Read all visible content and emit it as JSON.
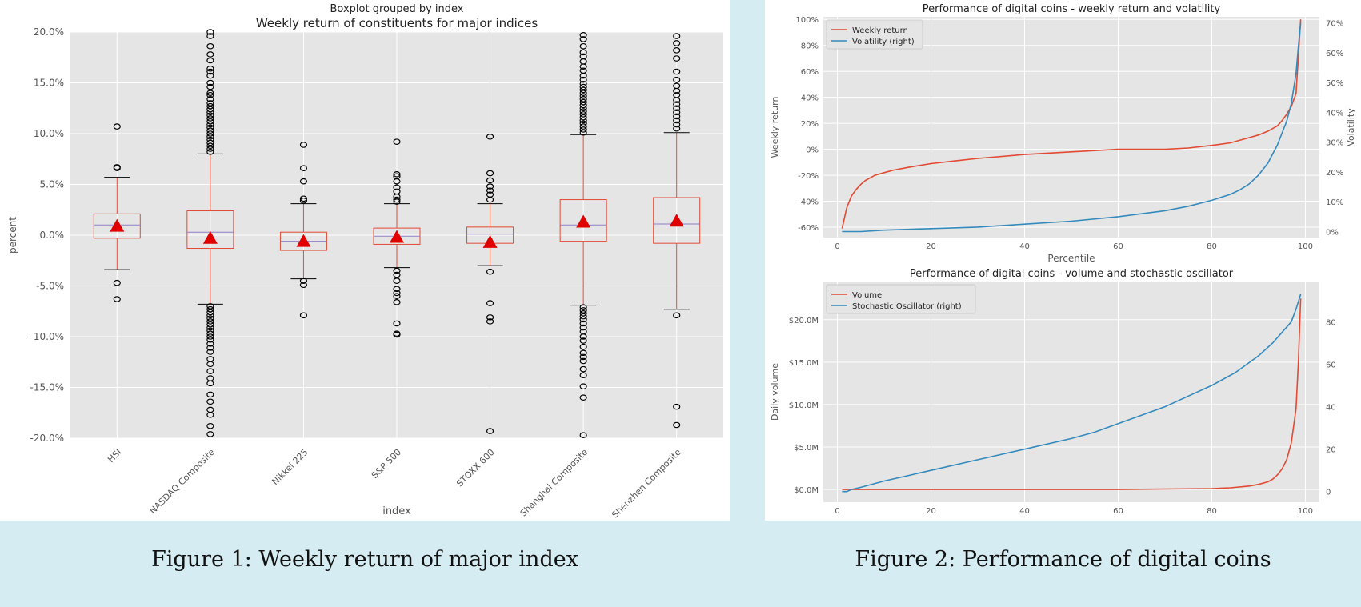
{
  "captions": {
    "fig1": "Figure 1: Weekly return of major index",
    "fig2": "Figure 2: Performance of digital coins"
  },
  "colors": {
    "plot_bg": "#e5e5e5",
    "grid": "#ffffff",
    "box": "#e24a33",
    "median": "#8f7ec6",
    "mean": "#e00000",
    "line_red": "#e24a33",
    "line_blue": "#348abd"
  },
  "chart_data": [
    {
      "type": "box",
      "suptitle": "Boxplot grouped by index",
      "title": "Weekly return of constituents for major indices",
      "xlabel": "index",
      "ylabel": "percent",
      "ylim": [
        -20,
        20
      ],
      "yticks": [
        -20,
        -15,
        -10,
        -5,
        0,
        5,
        10,
        15,
        20
      ],
      "ytick_labels": [
        "-20.0%",
        "-15.0%",
        "-10.0%",
        "-5.0%",
        "0.0%",
        "5.0%",
        "10.0%",
        "15.0%",
        "20.0%"
      ],
      "grid": true,
      "categories": [
        "HSI",
        "NASDAQ Composite",
        "Nikkei 225",
        "S&P 500",
        "STOXX 600",
        "Shanghai Composite",
        "Shenzhen Composite"
      ],
      "boxes": [
        {
          "whisker_low": -3.4,
          "q1": -0.3,
          "median": 1.0,
          "q3": 2.1,
          "whisker_high": 5.7,
          "mean": 0.9,
          "outliers": [
            10.7,
            6.7,
            6.6,
            -4.7,
            -6.3
          ]
        },
        {
          "whisker_low": -6.8,
          "q1": -1.3,
          "median": 0.3,
          "q3": 2.4,
          "whisker_high": 8.0,
          "mean": -0.3,
          "outliers": [
            8.2,
            8.5,
            8.8,
            9.1,
            9.4,
            9.7,
            10.0,
            10.3,
            10.6,
            10.9,
            11.2,
            11.5,
            11.8,
            12.1,
            12.4,
            12.7,
            13.0,
            13.4,
            13.8,
            14.0,
            14.6,
            15.0,
            15.7,
            16.1,
            16.4,
            17.2,
            17.8,
            18.6,
            19.6,
            20.0,
            -7.0,
            -7.3,
            -7.6,
            -7.9,
            -8.2,
            -8.5,
            -8.8,
            -9.1,
            -9.4,
            -9.7,
            -10.0,
            -10.3,
            -10.7,
            -11.1,
            -11.5,
            -12.2,
            -12.7,
            -13.4,
            -14.1,
            -14.6,
            -15.7,
            -16.4,
            -17.2,
            -17.7,
            -18.8,
            -19.6
          ]
        },
        {
          "whisker_low": -4.3,
          "q1": -1.5,
          "median": -0.6,
          "q3": 0.3,
          "whisker_high": 3.1,
          "mean": -0.6,
          "outliers": [
            8.9,
            6.6,
            5.3,
            3.6,
            3.4,
            -4.5,
            -4.9,
            -7.9
          ]
        },
        {
          "whisker_low": -3.2,
          "q1": -0.9,
          "median": -0.1,
          "q3": 0.7,
          "whisker_high": 3.1,
          "mean": -0.2,
          "outliers": [
            9.2,
            6.0,
            5.8,
            5.3,
            4.7,
            4.3,
            3.8,
            3.5,
            3.3,
            -3.5,
            -3.9,
            -4.5,
            -5.3,
            -5.7,
            -6.0,
            -6.6,
            -8.7,
            -9.7,
            -9.8
          ]
        },
        {
          "whisker_low": -3.0,
          "q1": -0.8,
          "median": 0.1,
          "q3": 0.8,
          "whisker_high": 3.1,
          "mean": -0.7,
          "outliers": [
            9.7,
            6.1,
            5.4,
            4.8,
            4.4,
            4.0,
            3.5,
            -3.6,
            -6.7,
            -8.1,
            -8.5,
            -19.3
          ]
        },
        {
          "whisker_low": -6.9,
          "q1": -0.6,
          "median": 1.0,
          "q3": 3.5,
          "whisker_high": 9.9,
          "mean": 1.3,
          "outliers": [
            10.1,
            10.4,
            10.7,
            11.0,
            11.3,
            11.6,
            11.9,
            12.2,
            12.5,
            12.8,
            13.1,
            13.4,
            13.7,
            14.0,
            14.3,
            14.6,
            14.9,
            15.3,
            15.7,
            16.2,
            16.6,
            17.1,
            17.6,
            18.0,
            18.6,
            19.3,
            19.7,
            -7.1,
            -7.4,
            -7.7,
            -8.0,
            -8.3,
            -8.7,
            -9.1,
            -9.5,
            -10.0,
            -10.4,
            -11.0,
            -11.6,
            -12.0,
            -12.4,
            -13.2,
            -13.8,
            -14.9,
            -16.0,
            -19.7
          ]
        },
        {
          "whisker_low": -7.3,
          "q1": -0.8,
          "median": 1.1,
          "q3": 3.7,
          "whisker_high": 10.1,
          "mean": 1.4,
          "outliers": [
            10.5,
            10.9,
            11.3,
            11.7,
            12.1,
            12.5,
            12.9,
            13.3,
            13.8,
            14.2,
            14.7,
            15.3,
            16.1,
            17.4,
            18.2,
            18.9,
            19.6,
            -7.9,
            -16.9,
            -18.7
          ]
        }
      ]
    },
    {
      "type": "line",
      "title": "Performance of digital coins - weekly return and volatility",
      "xlabel": "Percentile",
      "ylabel": "Weekly return",
      "y2label": "Volatility",
      "xlim": [
        -3,
        103
      ],
      "xticks": [
        0,
        20,
        40,
        60,
        80,
        100
      ],
      "ylim": [
        -68,
        102
      ],
      "yticks": [
        -60,
        -40,
        -20,
        0,
        20,
        40,
        60,
        80,
        100
      ],
      "ytick_labels": [
        "-60%",
        "-40%",
        "-20%",
        "0%",
        "20%",
        "40%",
        "60%",
        "80%",
        "100%"
      ],
      "y2lim": [
        -2,
        72
      ],
      "y2ticks": [
        0,
        10,
        20,
        30,
        40,
        50,
        60,
        70
      ],
      "y2tick_labels": [
        "0%",
        "10%",
        "20%",
        "30%",
        "40%",
        "50%",
        "60%",
        "70%"
      ],
      "legend": "top-left",
      "series": [
        {
          "name": "Weekly return",
          "axis": "left",
          "x": [
            1,
            2,
            3,
            4,
            5,
            6,
            7,
            8,
            10,
            12,
            15,
            20,
            25,
            30,
            40,
            50,
            60,
            64,
            70,
            75,
            80,
            84,
            88,
            90,
            92,
            94,
            95,
            96,
            97,
            98,
            99
          ],
          "y": [
            -61,
            -45,
            -36,
            -31,
            -27,
            -24,
            -22,
            -20,
            -18,
            -16,
            -14,
            -11,
            -9,
            -7,
            -4,
            -2,
            0,
            0,
            0,
            1,
            3,
            5,
            9,
            11,
            14,
            18,
            22,
            27,
            33,
            43,
            100
          ]
        },
        {
          "name": "Volatility (right)",
          "axis": "right",
          "x": [
            1,
            3,
            5,
            10,
            20,
            30,
            40,
            50,
            60,
            70,
            75,
            80,
            84,
            86,
            88,
            90,
            92,
            93,
            94,
            95,
            96,
            97,
            98,
            98.5,
            99
          ],
          "y": [
            0,
            0,
            0,
            0.5,
            1,
            1.5,
            2.5,
            3.5,
            5,
            7,
            8.5,
            10.5,
            12.5,
            14,
            16,
            19,
            23,
            26,
            29,
            33,
            37,
            43,
            53,
            62,
            70
          ]
        }
      ]
    },
    {
      "type": "line",
      "title": "Performance of digital coins - volume and stochastic oscillator",
      "xlabel": "",
      "ylabel": "Daily volume",
      "xlim": [
        -3,
        103
      ],
      "xticks": [
        0,
        20,
        40,
        60,
        80,
        100
      ],
      "ylim": [
        -1.5,
        24.5
      ],
      "yticks": [
        0,
        5,
        10,
        15,
        20
      ],
      "ytick_labels": [
        "$0.0M",
        "$5.0M",
        "$10.0M",
        "$15.0M",
        "$20.0M"
      ],
      "y2lim": [
        -5,
        99
      ],
      "y2ticks": [
        0,
        20,
        40,
        60,
        80
      ],
      "y2tick_labels": [
        "0",
        "20",
        "40",
        "60",
        "80"
      ],
      "legend": "top-left",
      "series": [
        {
          "name": "Volume",
          "axis": "left",
          "x": [
            1,
            10,
            20,
            40,
            60,
            70,
            80,
            84,
            88,
            90,
            92,
            93,
            94,
            95,
            96,
            97,
            98,
            98.5,
            99
          ],
          "y": [
            0,
            0,
            0,
            0,
            0,
            0.05,
            0.1,
            0.2,
            0.4,
            0.6,
            0.9,
            1.2,
            1.7,
            2.4,
            3.5,
            5.5,
            9.5,
            15,
            22.5
          ]
        },
        {
          "name": "Stochastic Oscillator (right)",
          "axis": "right",
          "x": [
            1,
            2,
            3,
            5,
            10,
            20,
            30,
            40,
            50,
            55,
            60,
            65,
            70,
            75,
            80,
            85,
            90,
            93,
            95,
            97,
            98,
            99
          ],
          "y": [
            0,
            0,
            1,
            2,
            5,
            10,
            15,
            20,
            25,
            28,
            32,
            36,
            40,
            45,
            50,
            56,
            64,
            70,
            75,
            80,
            86,
            93
          ]
        }
      ]
    }
  ]
}
